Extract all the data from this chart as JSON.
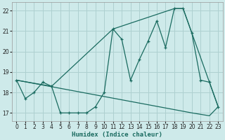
{
  "xlabel": "Humidex (Indice chaleur)",
  "bg_color": "#ceeaea",
  "grid_color": "#aed0d0",
  "line_color": "#1a6b60",
  "xlim": [
    -0.5,
    23.5
  ],
  "ylim": [
    16.6,
    22.4
  ],
  "xticks": [
    0,
    1,
    2,
    3,
    4,
    5,
    6,
    7,
    8,
    9,
    10,
    11,
    12,
    13,
    14,
    15,
    16,
    17,
    18,
    19,
    20,
    21,
    22,
    23
  ],
  "yticks": [
    17,
    18,
    19,
    20,
    21,
    22
  ],
  "line1_x": [
    0,
    1,
    2,
    3,
    4,
    5,
    6,
    7,
    8,
    9,
    10,
    11,
    12,
    13,
    14,
    15,
    16,
    17,
    18,
    19,
    20,
    21,
    22,
    23
  ],
  "line1_y": [
    18.6,
    17.7,
    18.0,
    18.5,
    18.3,
    17.0,
    17.0,
    17.0,
    17.0,
    17.3,
    18.0,
    21.1,
    20.6,
    18.6,
    19.6,
    20.5,
    21.5,
    20.2,
    22.1,
    22.1,
    20.9,
    18.6,
    18.5,
    17.3
  ],
  "line2_x": [
    0,
    4,
    11,
    18,
    19,
    22,
    23
  ],
  "line2_y": [
    18.6,
    18.3,
    21.1,
    22.1,
    22.1,
    18.5,
    17.3
  ],
  "line3_x": [
    0,
    1,
    2,
    3,
    4,
    5,
    6,
    7,
    8,
    9,
    10,
    11,
    12,
    13,
    14,
    15,
    16,
    17,
    18,
    19,
    20,
    21,
    22,
    23
  ],
  "line3_y": [
    18.6,
    18.52,
    18.44,
    18.36,
    18.28,
    18.2,
    18.12,
    18.04,
    17.96,
    17.88,
    17.8,
    17.72,
    17.64,
    17.56,
    17.48,
    17.4,
    17.32,
    17.24,
    17.16,
    17.08,
    17.0,
    16.93,
    16.86,
    17.3
  ]
}
